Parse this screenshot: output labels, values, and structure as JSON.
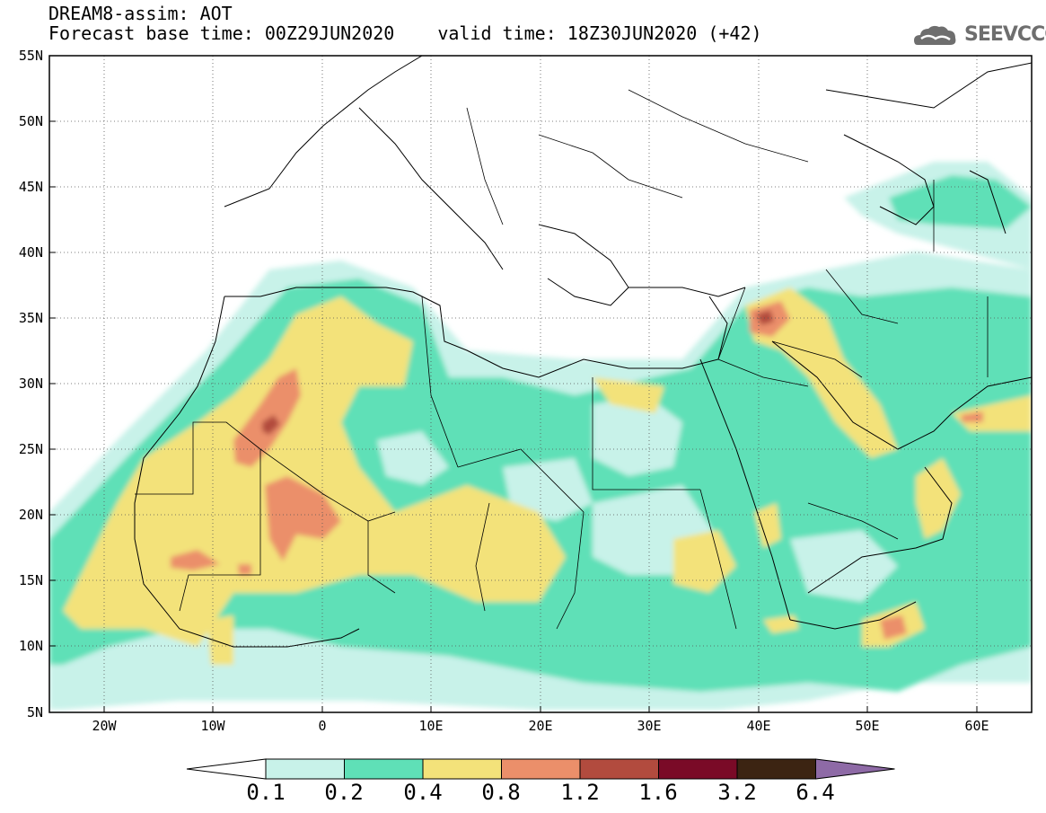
{
  "header": {
    "title_line1": "DREAM8-assim: AOT",
    "base_time": "Forecast base time: 00Z29JUN2020",
    "valid_time": "valid time: 18Z30JUN2020 (+42)"
  },
  "logo": {
    "text": "SEEVCCC",
    "icon": "cloud-icon"
  },
  "map": {
    "lon_range": [
      -25,
      65
    ],
    "lat_range": [
      5,
      55
    ],
    "lat_labels": [
      "55N",
      "50N",
      "45N",
      "40N",
      "35N",
      "30N",
      "25N",
      "20N",
      "15N",
      "10N",
      "5N"
    ],
    "lon_labels": [
      "20W",
      "10W",
      "0",
      "10E",
      "20E",
      "30E",
      "40E",
      "50E",
      "60E"
    ],
    "grid": "dotted"
  },
  "colorbar": {
    "labels": [
      "0.1",
      "0.2",
      "0.4",
      "0.8",
      "1.2",
      "1.6",
      "3.2",
      "6.4"
    ],
    "colors": [
      "#ffffff",
      "#c8f2e9",
      "#5fe0b7",
      "#f3e27a",
      "#eb8f6a",
      "#b24b3e",
      "#7a0a27",
      "#3c2412",
      "#8e6aa6"
    ]
  }
}
